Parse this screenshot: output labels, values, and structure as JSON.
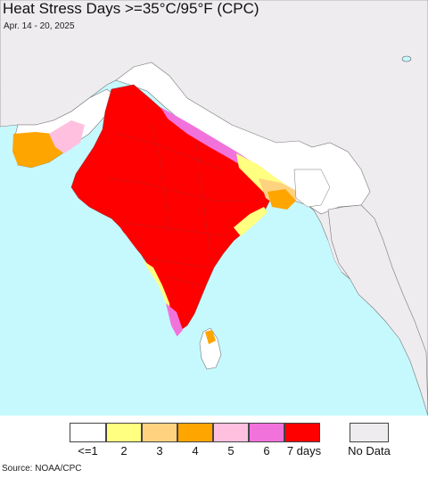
{
  "title": "Heat Stress Days >=35°C/95°F (CPC)",
  "date_range": "Apr. 14 - 20, 2025",
  "source": "Source: NOAA/CPC",
  "colors": {
    "ocean": "#c6f9fe",
    "land_outside": "#efecf0",
    "border": "#555555"
  },
  "legend": {
    "items": [
      {
        "label": "<=1",
        "color": "#ffffff"
      },
      {
        "label": "2",
        "color": "#ffff80"
      },
      {
        "label": "3",
        "color": "#ffd280"
      },
      {
        "label": "4",
        "color": "#ffa500"
      },
      {
        "label": "5",
        "color": "#ffc0e0"
      },
      {
        "label": "6",
        "color": "#f272dc"
      },
      {
        "label": "7 days",
        "color": "#ff0000"
      }
    ],
    "no_data": {
      "label": "No Data",
      "color": "#efecf0"
    }
  }
}
